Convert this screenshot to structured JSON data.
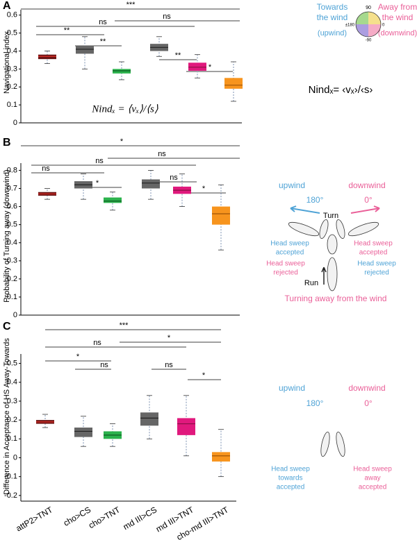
{
  "chart_data": [
    {
      "type": "box",
      "panel": "A",
      "ylabel": "Navigational index",
      "ylim": [
        0,
        0.63
      ],
      "yticks": [
        0,
        0.1,
        0.2,
        0.3,
        0.4,
        0.5,
        0.6
      ],
      "formula": "Nindₓ = ⟨vₓ⟩/⟨s⟩",
      "boxes": [
        {
          "min": 0.33,
          "q1": 0.355,
          "median": 0.37,
          "q3": 0.38,
          "max": 0.4
        },
        {
          "min": 0.3,
          "q1": 0.385,
          "median": 0.41,
          "q3": 0.43,
          "max": 0.48
        },
        {
          "min": 0.24,
          "q1": 0.275,
          "median": 0.29,
          "q3": 0.3,
          "max": 0.34
        },
        {
          "min": 0.37,
          "q1": 0.4,
          "median": 0.42,
          "q3": 0.44,
          "max": 0.48
        },
        {
          "min": 0.25,
          "q1": 0.29,
          "median": 0.31,
          "q3": 0.335,
          "max": 0.38
        },
        {
          "min": 0.12,
          "q1": 0.19,
          "median": 0.21,
          "q3": 0.25,
          "max": 0.34
        }
      ],
      "colors": [
        "#6b1414",
        "#666666",
        "#2bb24c",
        "#666666",
        "#e0197d",
        "#f7941d"
      ],
      "median_colors": [
        "#e0302a",
        "#222222",
        "#0e5a22",
        "#222222",
        "#8a0f45",
        "#a05506"
      ],
      "significance": [
        "***",
        "ns",
        "ns",
        "**",
        "**",
        "**",
        "*"
      ]
    },
    {
      "type": "box",
      "panel": "B",
      "ylabel": "Probability of Turning away (downwind)",
      "ylim": [
        0,
        0.84
      ],
      "yticks": [
        0,
        0.1,
        0.2,
        0.3,
        0.4,
        0.5,
        0.6,
        0.7,
        0.8
      ],
      "boxes": [
        {
          "min": 0.64,
          "q1": 0.66,
          "median": 0.67,
          "q3": 0.68,
          "max": 0.7
        },
        {
          "min": 0.64,
          "q1": 0.7,
          "median": 0.72,
          "q3": 0.74,
          "max": 0.78
        },
        {
          "min": 0.58,
          "q1": 0.62,
          "median": 0.63,
          "q3": 0.65,
          "max": 0.68
        },
        {
          "min": 0.64,
          "q1": 0.7,
          "median": 0.73,
          "q3": 0.75,
          "max": 0.8
        },
        {
          "min": 0.6,
          "q1": 0.67,
          "median": 0.69,
          "q3": 0.71,
          "max": 0.78
        },
        {
          "min": 0.36,
          "q1": 0.5,
          "median": 0.56,
          "q3": 0.6,
          "max": 0.72
        }
      ],
      "colors": [
        "#6b1414",
        "#666666",
        "#2bb24c",
        "#666666",
        "#e0197d",
        "#f7941d"
      ],
      "median_colors": [
        "#e0302a",
        "#222222",
        "#0e5a22",
        "#222222",
        "#8a0f45",
        "#a05506"
      ],
      "significance": [
        "*",
        "ns",
        "ns",
        "ns",
        "*",
        "ns",
        "*"
      ]
    },
    {
      "type": "box",
      "panel": "C",
      "ylabel": "Difference in Acceptance of HS Away-Towards",
      "ylim": [
        -0.23,
        0.55
      ],
      "yticks": [
        -0.2,
        -0.1,
        0,
        0.1,
        0.2,
        0.3,
        0.4,
        0.5
      ],
      "categories": [
        "attP2>TNT",
        "cho>CS",
        "cho>TNT",
        "md III>CS",
        "md III>TNT",
        "cho-md III>TNT"
      ],
      "category_colors": [
        "#000000",
        "#000000",
        "#2bb24c",
        "#000000",
        "#e0197d",
        "#f7941d"
      ],
      "boxes": [
        {
          "min": 0.16,
          "q1": 0.18,
          "median": 0.19,
          "q3": 0.2,
          "max": 0.23
        },
        {
          "min": 0.06,
          "q1": 0.11,
          "median": 0.14,
          "q3": 0.16,
          "max": 0.22
        },
        {
          "min": 0.06,
          "q1": 0.1,
          "median": 0.12,
          "q3": 0.14,
          "max": 0.18
        },
        {
          "min": 0.1,
          "q1": 0.17,
          "median": 0.21,
          "q3": 0.24,
          "max": 0.33
        },
        {
          "min": 0.01,
          "q1": 0.12,
          "median": 0.18,
          "q3": 0.21,
          "max": 0.33
        },
        {
          "min": -0.1,
          "q1": -0.02,
          "median": 0.01,
          "q3": 0.03,
          "max": 0.15
        }
      ],
      "colors": [
        "#6b1414",
        "#666666",
        "#2bb24c",
        "#666666",
        "#e0197d",
        "#f7941d"
      ],
      "median_colors": [
        "#e0302a",
        "#222222",
        "#0e5a22",
        "#222222",
        "#8a0f45",
        "#a05506"
      ],
      "significance": [
        "***",
        "ns",
        "*",
        "*",
        "ns",
        "ns",
        "*"
      ]
    }
  ],
  "diagrams": {
    "a": {
      "towards": [
        "Towards",
        "the wind"
      ],
      "upwind": "(upwind)",
      "away": [
        "Away from",
        "the wind"
      ],
      "downwind": "(downwind)",
      "compass": [
        90,
        "±180",
        0,
        -90
      ],
      "formula": "Nindₓ= ‹vₓ›/‹s›"
    },
    "b": {
      "upwind": "upwind",
      "downwind": "downwind",
      "up_angle": "180°",
      "down_angle": "0°",
      "turn": "Turn",
      "left_accepted": [
        "Head sweep",
        "accepted"
      ],
      "right_accepted": [
        "Head sweep",
        "accepted"
      ],
      "left_rejected": [
        "Head sweep",
        "rejected"
      ],
      "right_rejected": [
        "Head sweep",
        "rejected"
      ],
      "run": "Run",
      "caption": "Turning away from the wind"
    },
    "c": {
      "upwind": "upwind",
      "downwind": "downwind",
      "up_angle": "180°",
      "down_angle": "0°",
      "towards": [
        "Head sweep",
        "towards",
        "accepted"
      ],
      "away": [
        "Head sweep",
        "away",
        "accepted"
      ]
    }
  }
}
